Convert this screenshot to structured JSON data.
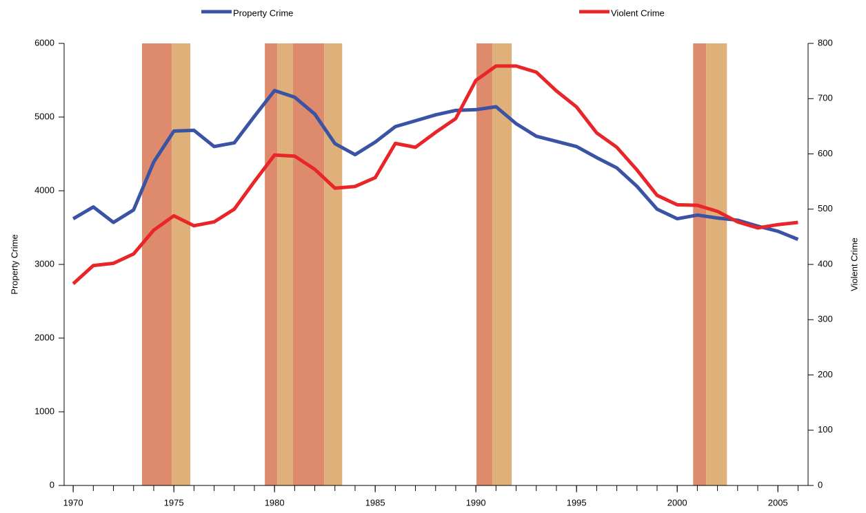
{
  "chart_data": {
    "type": "line",
    "x": [
      1970,
      1971,
      1972,
      1973,
      1974,
      1975,
      1976,
      1977,
      1978,
      1979,
      1980,
      1981,
      1982,
      1983,
      1984,
      1985,
      1986,
      1987,
      1988,
      1989,
      1990,
      1991,
      1992,
      1993,
      1994,
      1995,
      1996,
      1997,
      1998,
      1999,
      2000,
      2001,
      2002,
      2003,
      2004,
      2005,
      2006
    ],
    "series": [
      {
        "name": "Property Crime",
        "color": "#3a53a4",
        "values": [
          3620,
          3780,
          3570,
          3740,
          4390,
          4810,
          4820,
          4600,
          4650,
          5010,
          5360,
          5270,
          5040,
          4640,
          4490,
          4660,
          4870,
          4950,
          5030,
          5090,
          5100,
          5140,
          4910,
          4740,
          4670,
          4600,
          4450,
          4310,
          4060,
          3750,
          3620,
          3670,
          3630,
          3600,
          3520,
          3450,
          3340
        ]
      },
      {
        "name": "Violent Crime",
        "color": "#e8262a",
        "axis": "y2",
        "values": [
          365,
          398,
          402,
          419,
          462,
          488,
          470,
          477,
          500,
          550,
          598,
          596,
          572,
          538,
          541,
          557,
          619,
          612,
          639,
          664,
          733,
          759,
          759,
          748,
          714,
          685,
          638,
          612,
          571,
          525,
          508,
          507,
          496,
          477,
          466,
          472,
          476
        ]
      }
    ],
    "y_label": "Property Crime",
    "y2_label": "Violent Crime",
    "xlim": [
      1969.55,
      2006.5
    ],
    "xticks": [
      1970,
      1975,
      1980,
      1985,
      1990,
      1995,
      2000,
      2005
    ],
    "xminorticks": [
      1970,
      1971,
      1972,
      1973,
      1974,
      1975,
      1976,
      1977,
      1978,
      1979,
      1980,
      1981,
      1982,
      1983,
      1984,
      1985,
      1986,
      1987,
      1988,
      1989,
      1990,
      1991,
      1992,
      1993,
      1994,
      1995,
      1996,
      1997,
      1998,
      1999,
      2000,
      2001,
      2002,
      2003,
      2004,
      2005,
      2006
    ],
    "ylim": [
      0,
      6000
    ],
    "yticks": [
      0,
      1000,
      2000,
      3000,
      4000,
      5000,
      6000
    ],
    "y2lim": [
      0,
      800
    ],
    "y2ticks": [
      0,
      100,
      200,
      300,
      400,
      500,
      600,
      700,
      800
    ],
    "shaded_regions": [
      {
        "start": 1973.42,
        "end": 1974.9,
        "color": "#de8a6c"
      },
      {
        "start": 1974.9,
        "end": 1975.82,
        "color": "#e0b07a"
      },
      {
        "start": 1979.52,
        "end": 1980.14,
        "color": "#de8a6c"
      },
      {
        "start": 1980.14,
        "end": 1980.92,
        "color": "#e0b07a"
      },
      {
        "start": 1980.92,
        "end": 1982.47,
        "color": "#de8a6c"
      },
      {
        "start": 1982.47,
        "end": 1983.36,
        "color": "#e0b07a"
      },
      {
        "start": 1990.03,
        "end": 1990.82,
        "color": "#de8a6c"
      },
      {
        "start": 1990.82,
        "end": 1991.78,
        "color": "#e0b07a"
      },
      {
        "start": 2000.79,
        "end": 2001.44,
        "color": "#de8a6c"
      },
      {
        "start": 2001.44,
        "end": 2002.47,
        "color": "#e0b07a"
      }
    ]
  }
}
